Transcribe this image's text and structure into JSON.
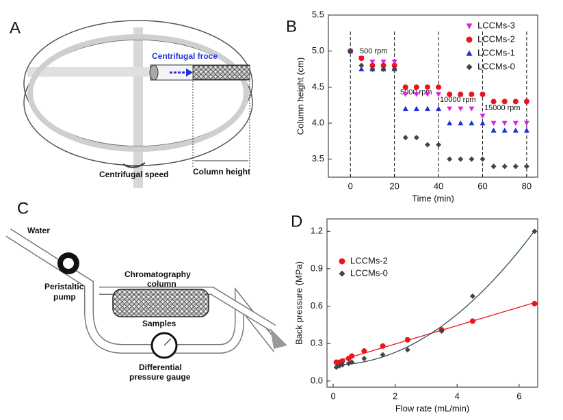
{
  "diagram_a": {
    "label": "A",
    "force": "Centrifugal froce",
    "speed": "Centrifugal speed",
    "height": "Column height"
  },
  "diagram_c": {
    "label": "C",
    "water": "Water",
    "pump": [
      "Peristaltic",
      "pump"
    ],
    "column": [
      "Chromatography",
      "column"
    ],
    "samples": "Samples",
    "gauge": [
      "Differential",
      "pressure gauge"
    ]
  },
  "chart_data": [
    {
      "type": "scatter",
      "panel": "B",
      "xlabel": "Time (min)",
      "ylabel": "Column height (cm)",
      "x": [
        0,
        5,
        10,
        15,
        20,
        25,
        30,
        35,
        40,
        45,
        50,
        55,
        60,
        65,
        70,
        75,
        80
      ],
      "series": [
        {
          "name": "LCCMs-3",
          "color": "#e020e0",
          "marker": "triangle-down",
          "values": [
            5.0,
            4.9,
            4.85,
            4.85,
            4.85,
            4.4,
            4.4,
            4.4,
            4.4,
            4.2,
            4.2,
            4.2,
            4.1,
            4.0,
            4.0,
            4.0,
            4.0
          ]
        },
        {
          "name": "LCCMs-2",
          "color": "#e8141e",
          "marker": "circle",
          "values": [
            5.0,
            4.9,
            4.8,
            4.8,
            4.8,
            4.5,
            4.5,
            4.5,
            4.5,
            4.4,
            4.4,
            4.4,
            4.4,
            4.3,
            4.3,
            4.3,
            4.3
          ]
        },
        {
          "name": "LCCMs-1",
          "color": "#1a2fd6",
          "marker": "triangle-up",
          "values": [
            5.0,
            4.75,
            4.75,
            4.75,
            4.75,
            4.2,
            4.2,
            4.2,
            4.2,
            4.0,
            4.0,
            4.0,
            4.0,
            3.9,
            3.9,
            3.9,
            3.9
          ]
        },
        {
          "name": "LCCMs-0",
          "color": "#444444",
          "marker": "diamond",
          "values": [
            5.0,
            4.8,
            4.75,
            4.75,
            4.75,
            3.8,
            3.8,
            3.7,
            3.7,
            3.5,
            3.5,
            3.5,
            3.5,
            3.4,
            3.4,
            3.4,
            3.4
          ]
        }
      ],
      "vlines": [
        0,
        20,
        40,
        60,
        80
      ],
      "annotations": [
        "500 rpm",
        "5000 rpm",
        "10000 rpm",
        "15000 rpm"
      ],
      "xlim": [
        -10,
        85
      ],
      "ylim": [
        3.25,
        5.5
      ],
      "xticks": [
        0,
        20,
        40,
        60,
        80
      ],
      "yticks": [
        3.5,
        {
          "value": 4,
          "label": "4.0"
        },
        4.5,
        {
          "value": 5,
          "label": "5.0"
        },
        5.5
      ],
      "legend": "upper right"
    },
    {
      "type": "scatter",
      "panel": "D",
      "xlabel": "Flow rate (mL/min)",
      "ylabel": "Back pressure (MPa)",
      "x": [
        0.1,
        0.2,
        0.3,
        0.5,
        0.6,
        1,
        1.6,
        2.4,
        3.5,
        4.5,
        6.5
      ],
      "series": [
        {
          "name": "LCCMs-2",
          "color": "#e8141e",
          "marker": "circle",
          "fit": 1,
          "fit_color": "#e8141e",
          "values": [
            0.15,
            0.15,
            0.16,
            0.18,
            0.2,
            0.24,
            0.28,
            0.33,
            0.41,
            0.48,
            0.62
          ]
        },
        {
          "name": "LCCMs-0",
          "color": "#444444",
          "marker": "diamond",
          "fit": 2,
          "fit_color": "#2f4f4f",
          "values": [
            0.11,
            0.12,
            0.13,
            0.14,
            0.15,
            0.18,
            0.21,
            0.25,
            0.4,
            0.68,
            1.2
          ]
        }
      ],
      "xlim": [
        -0.2,
        6.6
      ],
      "ylim": [
        -0.05,
        1.3
      ],
      "xticks": [
        0,
        2,
        4,
        6
      ],
      "yticks": [
        {
          "value": 0,
          "label": "0.0"
        },
        0.3,
        0.6,
        0.9,
        1.2
      ],
      "legend": "upper left"
    }
  ]
}
